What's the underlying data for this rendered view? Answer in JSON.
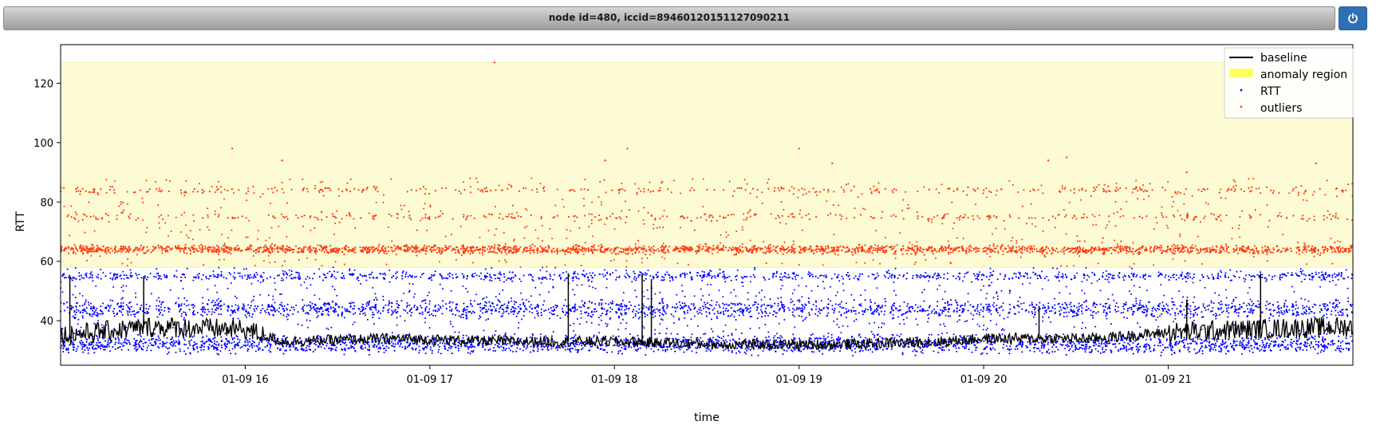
{
  "window": {
    "title": "node id=480, iccid=89460120151127090211",
    "power_icon": "power-icon"
  },
  "colors": {
    "titlebar_top": "#d6d6d6",
    "titlebar_bottom": "#9c9c9c",
    "button": "#2f6fb3",
    "anomaly_fill": "#fdfbd3",
    "rtt": "#0000ff",
    "outliers": "#ff3a14",
    "baseline": "#000000"
  },
  "chart_data": {
    "type": "scatter",
    "xlabel": "time",
    "ylabel": "RTT",
    "x_range_hours": [
      15.0,
      22.0
    ],
    "ylim": [
      25,
      133
    ],
    "x_ticks": [
      {
        "value": 16,
        "label": "01-09 16"
      },
      {
        "value": 17,
        "label": "01-09 17"
      },
      {
        "value": 18,
        "label": "01-09 18"
      },
      {
        "value": 19,
        "label": "01-09 19"
      },
      {
        "value": 20,
        "label": "01-09 20"
      },
      {
        "value": 21,
        "label": "01-09 21"
      }
    ],
    "y_ticks": [
      40,
      60,
      80,
      100,
      120
    ],
    "grid": false,
    "legend_position": "top-right",
    "legend": [
      {
        "label": "baseline",
        "kind": "line"
      },
      {
        "label": "anomaly region",
        "kind": "patch"
      },
      {
        "label": "RTT",
        "kind": "dot"
      },
      {
        "label": "outliers",
        "kind": "dot"
      }
    ],
    "anomaly_region": {
      "y_from": 58,
      "y_to": 127
    },
    "rtt_bands": [
      {
        "center": 32,
        "spread": 2.5
      },
      {
        "center": 44,
        "spread": 2.5
      },
      {
        "center": 55,
        "spread": 1.2
      }
    ],
    "outlier_bands": [
      {
        "center": 64,
        "spread": 1.2
      },
      {
        "center": 75,
        "spread": 1.0
      },
      {
        "center": 84,
        "spread": 1.0
      }
    ],
    "baseline": [
      {
        "x": 15.0,
        "y": 35
      },
      {
        "x": 15.5,
        "y": 38
      },
      {
        "x": 16.0,
        "y": 37
      },
      {
        "x": 16.2,
        "y": 33
      },
      {
        "x": 16.8,
        "y": 34
      },
      {
        "x": 17.4,
        "y": 33
      },
      {
        "x": 18.0,
        "y": 33
      },
      {
        "x": 18.6,
        "y": 32
      },
      {
        "x": 19.2,
        "y": 32
      },
      {
        "x": 19.8,
        "y": 33
      },
      {
        "x": 20.0,
        "y": 34
      },
      {
        "x": 20.6,
        "y": 34
      },
      {
        "x": 21.0,
        "y": 36
      },
      {
        "x": 21.4,
        "y": 37
      },
      {
        "x": 22.0,
        "y": 38
      }
    ],
    "baseline_spikes": [
      {
        "x": 15.05,
        "y": 55
      },
      {
        "x": 15.45,
        "y": 55
      },
      {
        "x": 17.75,
        "y": 56
      },
      {
        "x": 18.15,
        "y": 56
      },
      {
        "x": 18.2,
        "y": 54
      },
      {
        "x": 20.3,
        "y": 45
      },
      {
        "x": 21.1,
        "y": 47
      },
      {
        "x": 21.5,
        "y": 46
      },
      {
        "x": 21.5,
        "y": 56
      }
    ],
    "sparse_outliers": [
      {
        "x": 15.93,
        "y": 98
      },
      {
        "x": 16.2,
        "y": 94
      },
      {
        "x": 17.35,
        "y": 127
      },
      {
        "x": 17.95,
        "y": 94
      },
      {
        "x": 18.07,
        "y": 98
      },
      {
        "x": 19.0,
        "y": 98
      },
      {
        "x": 19.18,
        "y": 93
      },
      {
        "x": 20.35,
        "y": 94
      },
      {
        "x": 20.45,
        "y": 95
      },
      {
        "x": 21.8,
        "y": 93
      },
      {
        "x": 21.1,
        "y": 90
      }
    ]
  }
}
